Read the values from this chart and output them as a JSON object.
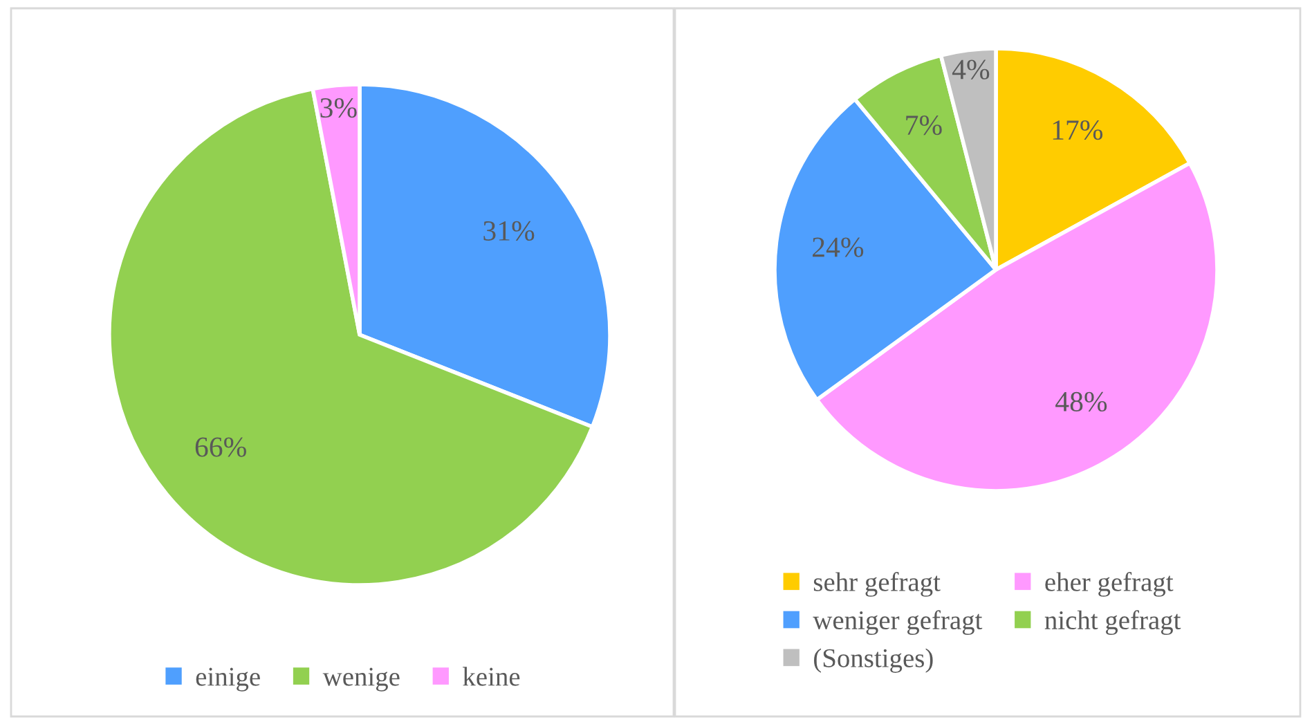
{
  "chart_data": [
    {
      "type": "pie",
      "categories": [
        "einige",
        "wenige",
        "keine"
      ],
      "values": [
        31,
        66,
        3
      ],
      "colors": [
        "#4f9ffe",
        "#92d050",
        "#ff99ff"
      ],
      "value_labels": [
        "31%",
        "66%",
        "3%"
      ],
      "legend": "bottom"
    },
    {
      "type": "pie",
      "categories": [
        "sehr gefragt",
        "eher gefragt",
        "weniger gefragt",
        "nicht gefragt",
        "(Sonstiges)"
      ],
      "values": [
        17,
        48,
        24,
        7,
        4
      ],
      "colors": [
        "#ffcc00",
        "#ff99ff",
        "#4f9ffe",
        "#92d050",
        "#bfbfbf"
      ],
      "value_labels": [
        "17%",
        "48%",
        "24%",
        "7%",
        "4%"
      ],
      "legend": "bottom"
    }
  ]
}
